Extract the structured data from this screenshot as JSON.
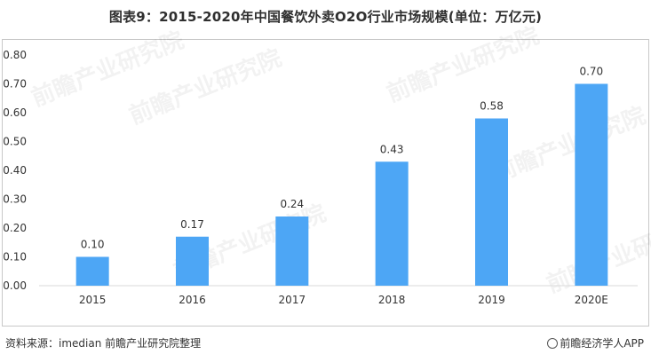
{
  "title": "图表9：2015-2020年中国餐饮外卖O2O行业市场规模(单位：万亿元)",
  "source": "资料来源：imedian 前瞻产业研究院整理",
  "brand": "前瞻经济学人APP",
  "watermark": "前瞻产业研究院",
  "colors": {
    "bar": "#4da6f5",
    "axis": "#d9d9d9"
  },
  "chart_data": {
    "type": "bar",
    "categories": [
      "2015",
      "2016",
      "2017",
      "2018",
      "2019",
      "2020E"
    ],
    "values": [
      0.1,
      0.17,
      0.24,
      0.43,
      0.58,
      0.7
    ],
    "value_labels": [
      "0.10",
      "0.17",
      "0.24",
      "0.43",
      "0.58",
      "0.70"
    ],
    "yticks": [
      "0.00",
      "0.10",
      "0.20",
      "0.30",
      "0.40",
      "0.50",
      "0.60",
      "0.70",
      "0.80"
    ],
    "ylim": [
      0,
      0.8
    ],
    "grid": false,
    "legend": "none"
  }
}
